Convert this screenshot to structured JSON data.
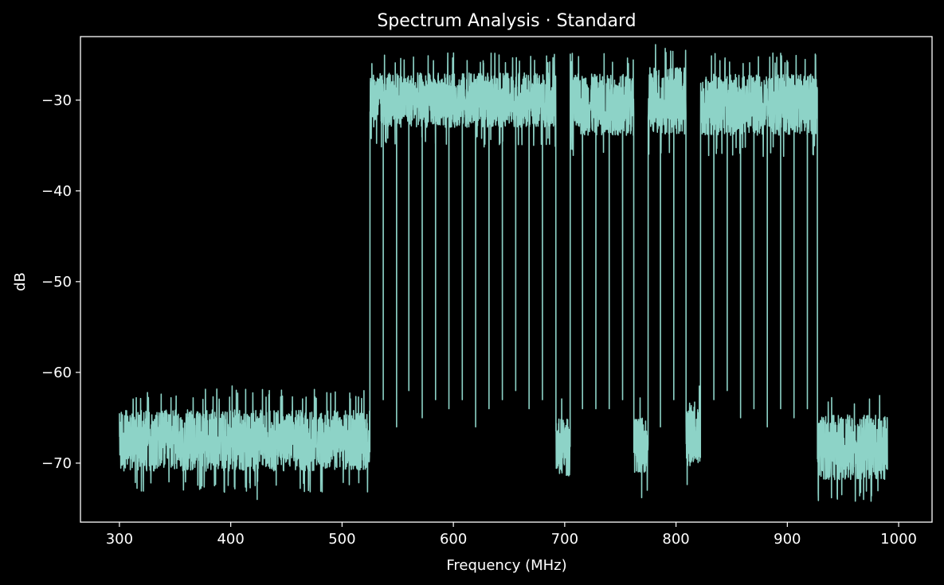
{
  "chart_data": {
    "type": "line",
    "title": "Spectrum Analysis · Standard",
    "xlabel": "Frequency (MHz)",
    "ylabel": "dB",
    "xlim": [
      265,
      1030
    ],
    "ylim": [
      -76.5,
      -23.0
    ],
    "xticks": [
      300,
      400,
      500,
      600,
      700,
      800,
      900,
      1000
    ],
    "yticks": [
      -30,
      -40,
      -50,
      -60,
      -70
    ],
    "xtick_labels": [
      "300",
      "400",
      "500",
      "600",
      "700",
      "800",
      "900",
      "1000"
    ],
    "ytick_labels": [
      "−30",
      "−40",
      "−50",
      "−60",
      "−70"
    ],
    "grid": false,
    "line_color": "#8dd3c7",
    "background_color": "#000000",
    "foreground_color": "#ffffff",
    "series": [
      {
        "frequency_range_mhz": [
          300,
          990
        ],
        "segments": [
          {
            "x_start": 300,
            "x_end": 525,
            "level_low": -72,
            "level_high": -63,
            "peak_db": -61.5,
            "min_db": -74
          },
          {
            "x_start": 525,
            "x_end": 692,
            "level_low": -34,
            "level_high": -26,
            "peak_db": -24.8
          },
          {
            "x_start": 692,
            "x_end": 705,
            "level_low": -72.5,
            "level_high": -64
          },
          {
            "x_start": 705,
            "x_end": 762,
            "level_low": -35,
            "level_high": -26
          },
          {
            "x_start": 762,
            "x_end": 775,
            "level_low": -72,
            "level_high": -64,
            "min_db": -73.8
          },
          {
            "x_start": 775,
            "x_end": 809,
            "level_low": -35,
            "level_high": -25,
            "peak_db": -24.3
          },
          {
            "x_start": 809,
            "x_end": 822,
            "level_low": -71.5,
            "level_high": -62
          },
          {
            "x_start": 822,
            "x_end": 927,
            "level_low": -35,
            "level_high": -26
          },
          {
            "x_start": 927,
            "x_end": 990,
            "level_low": -73,
            "level_high": -63.5
          }
        ],
        "notch_dips": [
          {
            "x": 537,
            "db": -63
          },
          {
            "x": 549,
            "db": -66
          },
          {
            "x": 560,
            "db": -62
          },
          {
            "x": 572,
            "db": -65
          },
          {
            "x": 584,
            "db": -63
          },
          {
            "x": 596,
            "db": -64
          },
          {
            "x": 608,
            "db": -63
          },
          {
            "x": 620,
            "db": -66
          },
          {
            "x": 632,
            "db": -64
          },
          {
            "x": 644,
            "db": -63
          },
          {
            "x": 656,
            "db": -62
          },
          {
            "x": 668,
            "db": -64
          },
          {
            "x": 680,
            "db": -63
          },
          {
            "x": 716,
            "db": -64
          },
          {
            "x": 728,
            "db": -64
          },
          {
            "x": 740,
            "db": -64
          },
          {
            "x": 752,
            "db": -63
          },
          {
            "x": 786,
            "db": -66
          },
          {
            "x": 798,
            "db": -63
          },
          {
            "x": 834,
            "db": -63
          },
          {
            "x": 846,
            "db": -62
          },
          {
            "x": 858,
            "db": -65
          },
          {
            "x": 870,
            "db": -64
          },
          {
            "x": 882,
            "db": -66
          },
          {
            "x": 894,
            "db": -64
          },
          {
            "x": 906,
            "db": -65
          },
          {
            "x": 918,
            "db": -64
          }
        ]
      }
    ]
  }
}
